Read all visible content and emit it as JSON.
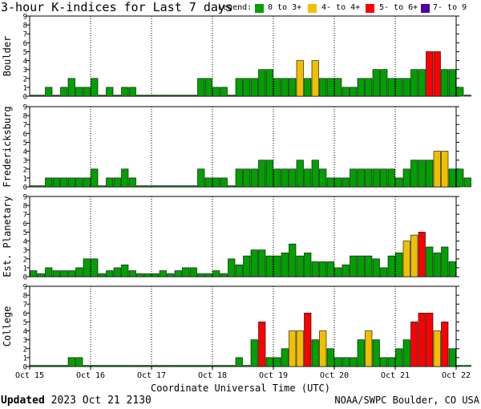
{
  "title": "3-hour K-indices for Last 7 days",
  "legend": {
    "label": "Legend:",
    "items": [
      {
        "label": "0 to 3+",
        "color": "#00a000"
      },
      {
        "label": "4- to 4+",
        "color": "#f0c000"
      },
      {
        "label": "5- to 6+",
        "color": "#ff0000"
      },
      {
        "label": "7- to 9",
        "color": "#5000a0"
      }
    ]
  },
  "footer": {
    "updated_label": "Updated",
    "updated_value": "2023 Oct 21 2130",
    "credit": "NOAA/SWPC Boulder, CO USA"
  },
  "chart_data": {
    "type": "bar",
    "x_label": "Coordinate Universal Time (UTC)",
    "x_ticks": [
      "Oct 15",
      "Oct 16",
      "Oct 17",
      "Oct 18",
      "Oct 19",
      "Oct 20",
      "Oct 21",
      "Oct 22"
    ],
    "bins_per_day": 8,
    "ylim": [
      0,
      9
    ],
    "y_ticks": [
      0,
      1,
      2,
      3,
      4,
      5,
      6,
      7,
      8,
      9
    ],
    "panels": [
      {
        "name": "Boulder",
        "values": [
          0,
          0,
          1,
          0,
          1,
          2,
          1,
          1,
          2,
          0,
          1,
          0,
          1,
          1,
          0,
          0,
          0,
          0,
          0,
          0,
          0,
          0,
          2,
          2,
          1,
          1,
          0,
          2,
          2,
          2,
          3,
          3,
          2,
          2,
          2,
          4,
          2,
          4,
          2,
          2,
          2,
          1,
          1,
          2,
          2,
          3,
          3,
          2,
          2,
          2,
          3,
          3,
          5,
          5,
          3,
          3,
          1,
          0
        ]
      },
      {
        "name": "Fredericksburg",
        "values": [
          0,
          0,
          1,
          1,
          1,
          1,
          1,
          1,
          2,
          0,
          1,
          1,
          2,
          1,
          0,
          0,
          0,
          0,
          0,
          0,
          0,
          0,
          2,
          1,
          1,
          1,
          0,
          2,
          2,
          2,
          3,
          3,
          2,
          2,
          2,
          3,
          2,
          3,
          2,
          1,
          1,
          1,
          2,
          2,
          2,
          2,
          2,
          2,
          1,
          2,
          3,
          3,
          3,
          4,
          4,
          2,
          2,
          1
        ]
      },
      {
        "name": "Est. Planetary",
        "values": [
          0.67,
          0.33,
          1,
          0.67,
          0.67,
          0.67,
          1,
          2,
          2,
          0.33,
          0.67,
          1,
          1.33,
          0.67,
          0.33,
          0.33,
          0.33,
          0.67,
          0.33,
          0.67,
          1,
          1,
          0.33,
          0.33,
          0.67,
          0.33,
          2,
          1.33,
          2.33,
          3,
          3,
          2.33,
          2.33,
          2.67,
          3.67,
          2.33,
          2.67,
          1.67,
          1.67,
          1.67,
          1,
          1.33,
          2.33,
          2.33,
          2.33,
          2,
          1,
          2.33,
          2.67,
          4,
          4.67,
          5,
          3.33,
          2.67,
          3.33,
          1.67
        ]
      },
      {
        "name": "College",
        "values": [
          0,
          0,
          0,
          0,
          0,
          1,
          1,
          0,
          0,
          0,
          0,
          0,
          0,
          0,
          0,
          0,
          0,
          0,
          0,
          0,
          0,
          0,
          0,
          0,
          0,
          0,
          0,
          1,
          0,
          3,
          5,
          1,
          1,
          2,
          4,
          4,
          6,
          3,
          4,
          2,
          1,
          1,
          1,
          3,
          4,
          3,
          1,
          1,
          2,
          3,
          5,
          6,
          6,
          4,
          5,
          2,
          0,
          0
        ]
      }
    ]
  }
}
